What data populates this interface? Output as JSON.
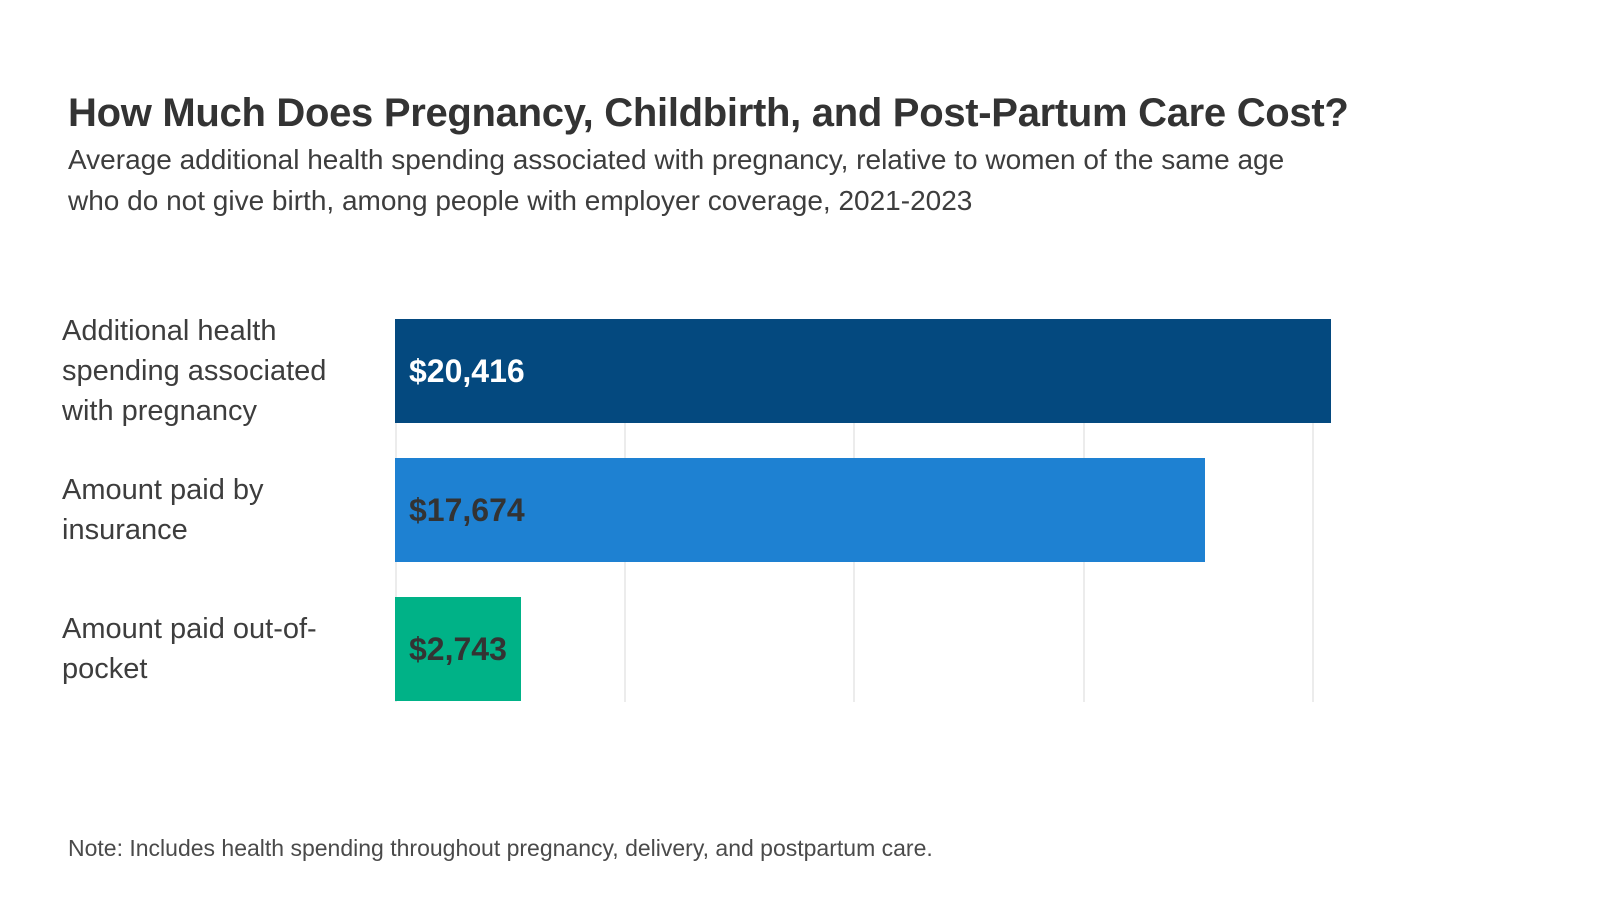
{
  "header": {
    "title": "How Much Does Pregnancy, Childbirth, and Post-Partum Care Cost?",
    "subtitle_lines": [
      "Average additional health spending associated with pregnancy, relative to women of the same age",
      "who do not give birth, among people with employer coverage, 2021-2023"
    ]
  },
  "chart_data": {
    "type": "bar",
    "orientation": "horizontal",
    "title": "How Much Does Pregnancy, Childbirth, and Post-Partum Care Cost?",
    "categories": [
      "Additional health spending associated with pregnancy",
      "Amount paid by insurance",
      "Amount paid out-of-pocket"
    ],
    "values": [
      20416,
      17674,
      2743
    ],
    "value_labels": [
      "$20,416",
      "$17,674",
      "$2,743"
    ],
    "bar_colors": [
      "#04497f",
      "#1e81d2",
      "#00b287"
    ],
    "value_label_colors": [
      "#ffffff",
      "#333333",
      "#333333"
    ],
    "xlim": [
      0,
      24000
    ],
    "gridlines": [
      0,
      5000,
      10000,
      15000,
      20000
    ],
    "grid_color": "#ececec",
    "grid": "vertical",
    "legend": "none",
    "xlabel": "",
    "ylabel": ""
  },
  "footer": {
    "note": "Note: Includes health spending throughout pregnancy, delivery, and postpartum care."
  }
}
